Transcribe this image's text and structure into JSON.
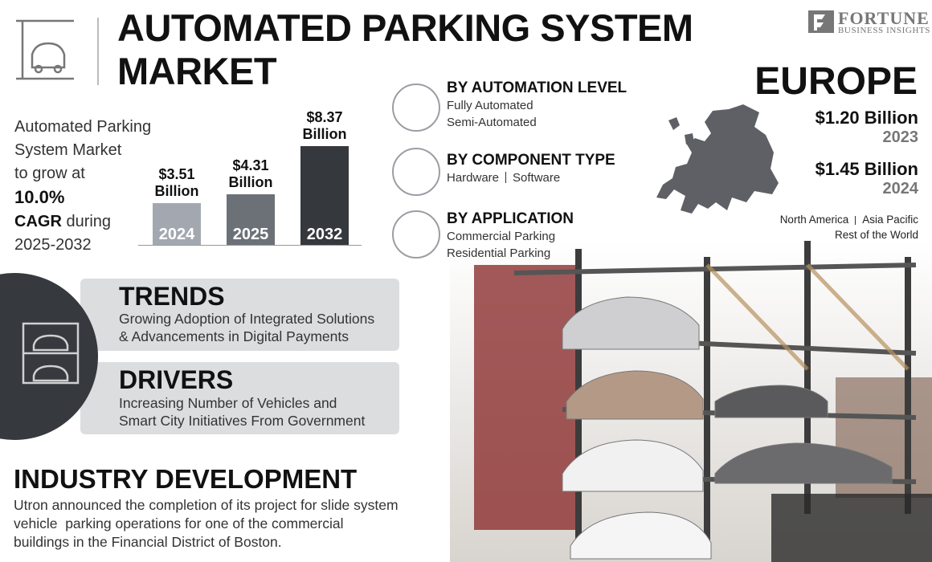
{
  "header": {
    "title_lines": [
      "AUTOMATED PARKING SYSTEM",
      "MARKET"
    ],
    "brand": "FORTUNE",
    "brand_sub": "BUSINESS INSIGHTS"
  },
  "summary": {
    "lines": [
      "Automated Parking",
      "System Market",
      "to grow at"
    ],
    "cagr": "10.0%",
    "cagr_label": "CAGR",
    "during": "during",
    "period": "2025-2032"
  },
  "chart_data": {
    "type": "bar",
    "categories": [
      "2024",
      "2025",
      "2032"
    ],
    "values": [
      3.51,
      4.31,
      8.37
    ],
    "value_labels": [
      "$3.51 Billion",
      "$4.31 Billion",
      "$8.37 Billion"
    ],
    "colors": [
      "#a3a8b0",
      "#6c7178",
      "#35383d"
    ]
  },
  "segments": [
    {
      "title": "BY AUTOMATION LEVEL",
      "items": [
        "Fully Automated",
        "Semi-Automated"
      ]
    },
    {
      "title": "BY COMPONENT TYPE",
      "items": [
        "Hardware",
        "Software"
      ]
    },
    {
      "title": "BY APPLICATION",
      "items": [
        "Commercial Parking",
        "Residential Parking"
      ]
    }
  ],
  "region": {
    "name": "EUROPE",
    "stats": [
      {
        "value": "$1.20 Billion",
        "year": "2023"
      },
      {
        "value": "$1.45 Billion",
        "year": "2024"
      }
    ],
    "others": [
      "North America",
      "Asia Pacific",
      "Rest of the World"
    ]
  },
  "trends": {
    "title": "TRENDS",
    "lines": [
      "Growing Adoption of Integrated Solutions",
      "& Advancements in Digital Payments"
    ]
  },
  "drivers": {
    "title": "DRIVERS",
    "lines": [
      "Increasing Number of Vehicles and",
      "Smart City Initiatives From Government"
    ]
  },
  "industry": {
    "title": "INDUSTRY DEVELOPMENT",
    "lines": [
      "Utron announced the completion of its project for slide system",
      "vehicle  parking operations for one of the commercial",
      "buildings in the Financial District of Boston."
    ]
  }
}
